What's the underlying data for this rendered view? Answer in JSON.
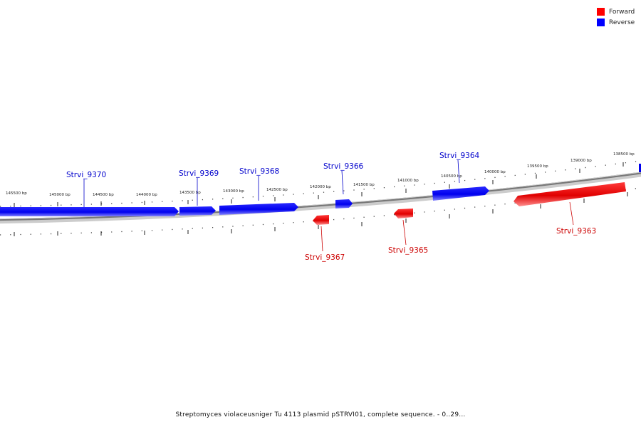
{
  "legend": [
    {
      "label": "Forward",
      "color": "#ff0000"
    },
    {
      "label": "Reverse",
      "color": "#0000ff"
    }
  ],
  "caption": "Streptomyces violaceusniger Tu 4113 plasmid pSTRVI01, complete sequence. - 0..29...",
  "ticks": [
    "145500 bp",
    "145000 bp",
    "144500 bp",
    "144000 bp",
    "143500 bp",
    "143000 bp",
    "142500 bp",
    "142000 bp",
    "141500 bp",
    "141000 bp",
    "140500 bp",
    "140000 bp",
    "139500 bp",
    "139000 bp",
    "138500 bp"
  ],
  "genes": [
    {
      "name": "Strvi_9370",
      "strand": "reverse"
    },
    {
      "name": "Strvi_9369",
      "strand": "reverse"
    },
    {
      "name": "Strvi_9368",
      "strand": "reverse"
    },
    {
      "name": "Strvi_9366",
      "strand": "reverse"
    },
    {
      "name": "Strvi_9364",
      "strand": "reverse"
    },
    {
      "name": "Strvi_9367",
      "strand": "forward"
    },
    {
      "name": "Strvi_9365",
      "strand": "forward"
    },
    {
      "name": "Strvi_9363",
      "strand": "forward"
    }
  ]
}
